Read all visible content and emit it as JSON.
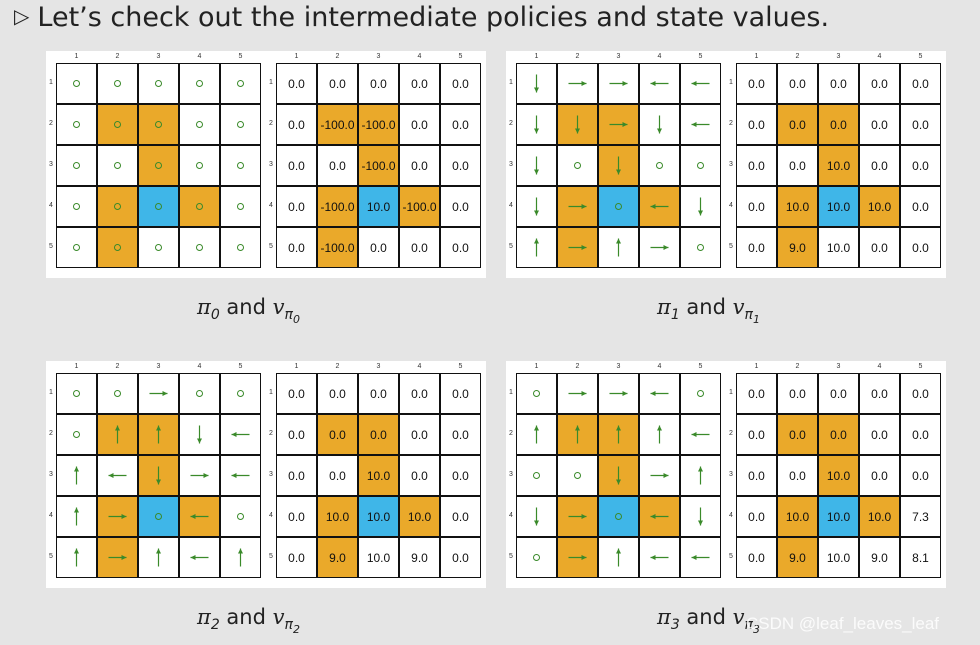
{
  "header": {
    "bullet": "▷",
    "text": "Let’s check out the intermediate policies and state values."
  },
  "column_numbers": [
    "1",
    "2",
    "3",
    "4",
    "5"
  ],
  "row_numbers": [
    "1",
    "2",
    "3",
    "4",
    "5"
  ],
  "cell_colors": [
    [
      "w",
      "w",
      "w",
      "w",
      "w"
    ],
    [
      "w",
      "o",
      "o",
      "w",
      "w"
    ],
    [
      "w",
      "w",
      "o",
      "w",
      "w"
    ],
    [
      "w",
      "o",
      "b",
      "o",
      "w"
    ],
    [
      "w",
      "o",
      "w",
      "w",
      "w"
    ]
  ],
  "palette": {
    "o": "#eaa92a",
    "b": "#3fb6e8",
    "w": "#ffffff",
    "arrow": "#3a8a2a"
  },
  "panels": [
    {
      "caption": {
        "pi": "π",
        "pi_sub": "0",
        "and": "and",
        "v": "v",
        "v_sub": "π",
        "v_subsub": "0"
      },
      "policy": [
        [
          "o",
          "o",
          "o",
          "o",
          "o"
        ],
        [
          "o",
          "o",
          "o",
          "o",
          "o"
        ],
        [
          "o",
          "o",
          "o",
          "o",
          "o"
        ],
        [
          "o",
          "o",
          "o",
          "o",
          "o"
        ],
        [
          "o",
          "o",
          "o",
          "o",
          "o"
        ]
      ],
      "values": [
        [
          "0.0",
          "0.0",
          "0.0",
          "0.0",
          "0.0"
        ],
        [
          "0.0",
          "-100.0",
          "-100.0",
          "0.0",
          "0.0"
        ],
        [
          "0.0",
          "0.0",
          "-100.0",
          "0.0",
          "0.0"
        ],
        [
          "0.0",
          "-100.0",
          "10.0",
          "-100.0",
          "0.0"
        ],
        [
          "0.0",
          "-100.0",
          "0.0",
          "0.0",
          "0.0"
        ]
      ]
    },
    {
      "caption": {
        "pi": "π",
        "pi_sub": "1",
        "and": "and",
        "v": "v",
        "v_sub": "π",
        "v_subsub": "1"
      },
      "policy": [
        [
          "d",
          "r",
          "r",
          "l",
          "l"
        ],
        [
          "d",
          "d",
          "r",
          "d",
          "l"
        ],
        [
          "d",
          "o",
          "d",
          "o",
          "o"
        ],
        [
          "d",
          "r",
          "o",
          "l",
          "d"
        ],
        [
          "u",
          "r",
          "u",
          "r",
          "o"
        ]
      ],
      "values": [
        [
          "0.0",
          "0.0",
          "0.0",
          "0.0",
          "0.0"
        ],
        [
          "0.0",
          "0.0",
          "0.0",
          "0.0",
          "0.0"
        ],
        [
          "0.0",
          "0.0",
          "10.0",
          "0.0",
          "0.0"
        ],
        [
          "0.0",
          "10.0",
          "10.0",
          "10.0",
          "0.0"
        ],
        [
          "0.0",
          "9.0",
          "10.0",
          "0.0",
          "0.0"
        ]
      ]
    },
    {
      "caption": {
        "pi": "π",
        "pi_sub": "2",
        "and": "and",
        "v": "v",
        "v_sub": "π",
        "v_subsub": "2"
      },
      "policy": [
        [
          "o",
          "o",
          "r",
          "o",
          "o"
        ],
        [
          "o",
          "u",
          "u",
          "d",
          "l"
        ],
        [
          "u",
          "l",
          "d",
          "r",
          "l"
        ],
        [
          "u",
          "r",
          "o",
          "l",
          "o"
        ],
        [
          "u",
          "r",
          "u",
          "l",
          "u"
        ]
      ],
      "values": [
        [
          "0.0",
          "0.0",
          "0.0",
          "0.0",
          "0.0"
        ],
        [
          "0.0",
          "0.0",
          "0.0",
          "0.0",
          "0.0"
        ],
        [
          "0.0",
          "0.0",
          "10.0",
          "0.0",
          "0.0"
        ],
        [
          "0.0",
          "10.0",
          "10.0",
          "10.0",
          "0.0"
        ],
        [
          "0.0",
          "9.0",
          "10.0",
          "9.0",
          "0.0"
        ]
      ]
    },
    {
      "caption": {
        "pi": "π",
        "pi_sub": "3",
        "and": "and",
        "v": "v",
        "v_sub": "π",
        "v_subsub": "3"
      },
      "policy": [
        [
          "o",
          "r",
          "r",
          "l",
          "o"
        ],
        [
          "u",
          "u",
          "u",
          "u",
          "l"
        ],
        [
          "o",
          "o",
          "d",
          "r",
          "u"
        ],
        [
          "d",
          "r",
          "o",
          "l",
          "d"
        ],
        [
          "o",
          "r",
          "u",
          "l",
          "l"
        ]
      ],
      "values": [
        [
          "0.0",
          "0.0",
          "0.0",
          "0.0",
          "0.0"
        ],
        [
          "0.0",
          "0.0",
          "0.0",
          "0.0",
          "0.0"
        ],
        [
          "0.0",
          "0.0",
          "10.0",
          "0.0",
          "0.0"
        ],
        [
          "0.0",
          "10.0",
          "10.0",
          "10.0",
          "7.3"
        ],
        [
          "0.0",
          "9.0",
          "10.0",
          "9.0",
          "8.1"
        ]
      ]
    }
  ],
  "watermark": "CSDN @leaf_leaves_leaf"
}
